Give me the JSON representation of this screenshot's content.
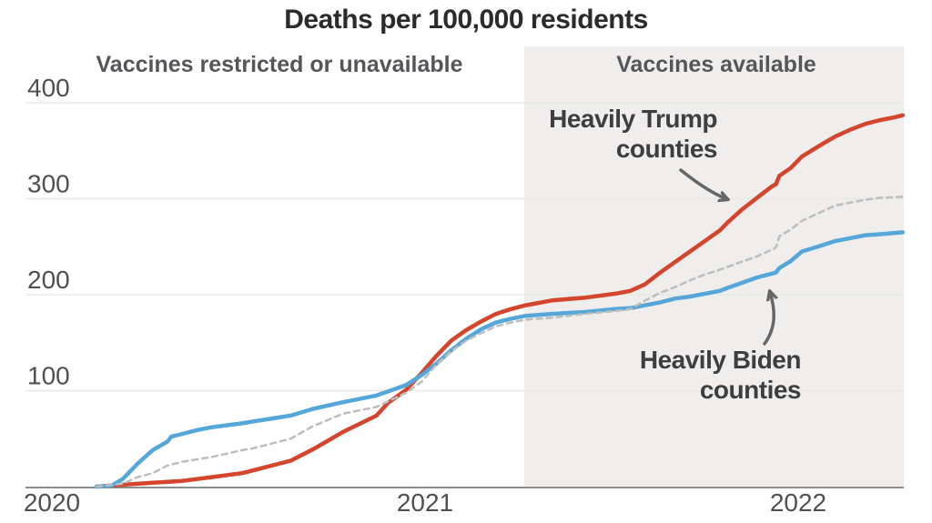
{
  "title": "Deaths per 100,000 residents",
  "regions": {
    "left_label": "Vaccines restricted or unavailable",
    "right_label": "Vaccines available"
  },
  "annotations": {
    "trump": {
      "line1": "Heavily Trump",
      "line2": "counties"
    },
    "biden": {
      "line1": "Heavily Biden",
      "line2": "counties"
    }
  },
  "colors": {
    "trump_line": "#d5452d",
    "biden_line": "#56a7d9",
    "dashed_line": "#bdbdbd",
    "vaccine_band": "#efeeec",
    "grid": "#e9e8e5",
    "axis": "#8e8e8e",
    "tick_text": "#4f5052",
    "arrow": "#676767",
    "title_text": "#2b2b2e"
  },
  "chart_data": {
    "type": "line",
    "title": "Deaths per 100,000 residents",
    "xlabel": "",
    "ylabel": "Deaths per 100,000 residents",
    "x_axis": {
      "ticks": [
        {
          "label": "2020",
          "t": 2020
        },
        {
          "label": "2021",
          "t": 2021
        },
        {
          "label": "2022",
          "t": 2022
        }
      ],
      "range": [
        2019.93,
        2022.29
      ]
    },
    "y_axis": {
      "ticks": [
        100,
        200,
        300,
        400
      ],
      "range": [
        0,
        455
      ],
      "grid": true
    },
    "vaccine_divider_t": 2021.265,
    "region_split_meaning": {
      "left": "Vaccines restricted or unavailable",
      "right": "Vaccines available"
    },
    "legend_position": "inline-annotations",
    "series": [
      {
        "name": "Heavily Trump counties",
        "style": "solid",
        "color": "#d5452d",
        "points": [
          [
            2020.12,
            0
          ],
          [
            2020.19,
            2
          ],
          [
            2020.27,
            4
          ],
          [
            2020.35,
            6
          ],
          [
            2020.43,
            10
          ],
          [
            2020.51,
            14
          ],
          [
            2020.54,
            17
          ],
          [
            2020.64,
            27
          ],
          [
            2020.7,
            39
          ],
          [
            2020.78,
            57
          ],
          [
            2020.87,
            74
          ],
          [
            2020.9,
            87
          ],
          [
            2020.95,
            101
          ],
          [
            2020.99,
            118
          ],
          [
            2021.03,
            136
          ],
          [
            2021.07,
            152
          ],
          [
            2021.11,
            163
          ],
          [
            2021.15,
            172
          ],
          [
            2021.19,
            180
          ],
          [
            2021.23,
            185
          ],
          [
            2021.27,
            189
          ],
          [
            2021.34,
            194
          ],
          [
            2021.43,
            197
          ],
          [
            2021.51,
            201
          ],
          [
            2021.55,
            204
          ],
          [
            2021.59,
            211
          ],
          [
            2021.63,
            223
          ],
          [
            2021.67,
            234
          ],
          [
            2021.71,
            245
          ],
          [
            2021.75,
            256
          ],
          [
            2021.79,
            267
          ],
          [
            2021.81,
            275
          ],
          [
            2021.85,
            289
          ],
          [
            2021.89,
            301
          ],
          [
            2021.93,
            313
          ],
          [
            2021.94,
            315
          ],
          [
            2021.95,
            324
          ],
          [
            2021.98,
            332
          ],
          [
            2022.01,
            344
          ],
          [
            2022.06,
            356
          ],
          [
            2022.1,
            365
          ],
          [
            2022.14,
            372
          ],
          [
            2022.18,
            378
          ],
          [
            2022.22,
            382
          ],
          [
            2022.26,
            385
          ],
          [
            2022.28,
            387
          ]
        ]
      },
      {
        "name": "Heavily Biden counties",
        "style": "solid",
        "color": "#56a7d9",
        "points": [
          [
            2020.12,
            0
          ],
          [
            2020.16,
            1
          ],
          [
            2020.19,
            8
          ],
          [
            2020.23,
            24
          ],
          [
            2020.27,
            38
          ],
          [
            2020.31,
            47
          ],
          [
            2020.32,
            52
          ],
          [
            2020.35,
            55
          ],
          [
            2020.39,
            59
          ],
          [
            2020.43,
            62
          ],
          [
            2020.47,
            64
          ],
          [
            2020.51,
            66
          ],
          [
            2020.54,
            68
          ],
          [
            2020.59,
            71
          ],
          [
            2020.64,
            74
          ],
          [
            2020.7,
            81
          ],
          [
            2020.78,
            88
          ],
          [
            2020.87,
            95
          ],
          [
            2020.95,
            106
          ],
          [
            2020.99,
            116
          ],
          [
            2021.03,
            128
          ],
          [
            2021.07,
            142
          ],
          [
            2021.11,
            154
          ],
          [
            2021.15,
            164
          ],
          [
            2021.19,
            171
          ],
          [
            2021.23,
            175
          ],
          [
            2021.27,
            178
          ],
          [
            2021.34,
            180
          ],
          [
            2021.43,
            182
          ],
          [
            2021.51,
            185
          ],
          [
            2021.55,
            186
          ],
          [
            2021.59,
            189
          ],
          [
            2021.63,
            192
          ],
          [
            2021.67,
            196
          ],
          [
            2021.71,
            198
          ],
          [
            2021.75,
            201
          ],
          [
            2021.79,
            204
          ],
          [
            2021.81,
            207
          ],
          [
            2021.89,
            218
          ],
          [
            2021.93,
            222
          ],
          [
            2021.94,
            223
          ],
          [
            2021.95,
            228
          ],
          [
            2021.98,
            235
          ],
          [
            2022.01,
            245
          ],
          [
            2022.06,
            251
          ],
          [
            2022.1,
            256
          ],
          [
            2022.14,
            259
          ],
          [
            2022.18,
            262
          ],
          [
            2022.22,
            263
          ],
          [
            2022.28,
            265
          ]
        ]
      },
      {
        "name": "(unlabeled dashed gray line)",
        "style": "dashed",
        "color": "#bdbdbd",
        "points": [
          [
            2020.12,
            0
          ],
          [
            2020.19,
            3
          ],
          [
            2020.23,
            10
          ],
          [
            2020.27,
            14
          ],
          [
            2020.31,
            22
          ],
          [
            2020.35,
            26
          ],
          [
            2020.43,
            31
          ],
          [
            2020.51,
            38
          ],
          [
            2020.54,
            40
          ],
          [
            2020.64,
            50
          ],
          [
            2020.7,
            63
          ],
          [
            2020.78,
            76
          ],
          [
            2020.87,
            83
          ],
          [
            2020.95,
            98
          ],
          [
            2020.99,
            109
          ],
          [
            2021.03,
            127
          ],
          [
            2021.07,
            141
          ],
          [
            2021.11,
            152
          ],
          [
            2021.15,
            160
          ],
          [
            2021.19,
            167
          ],
          [
            2021.23,
            171
          ],
          [
            2021.27,
            174
          ],
          [
            2021.34,
            176
          ],
          [
            2021.43,
            180
          ],
          [
            2021.51,
            183
          ],
          [
            2021.55,
            185
          ],
          [
            2021.59,
            194
          ],
          [
            2021.63,
            202
          ],
          [
            2021.67,
            208
          ],
          [
            2021.71,
            215
          ],
          [
            2021.75,
            221
          ],
          [
            2021.79,
            226
          ],
          [
            2021.81,
            229
          ],
          [
            2021.89,
            240
          ],
          [
            2021.93,
            247
          ],
          [
            2021.94,
            249
          ],
          [
            2021.95,
            261
          ],
          [
            2021.98,
            268
          ],
          [
            2022.01,
            277
          ],
          [
            2022.06,
            286
          ],
          [
            2022.1,
            293
          ],
          [
            2022.14,
            296
          ],
          [
            2022.18,
            299
          ],
          [
            2022.22,
            301
          ],
          [
            2022.28,
            302
          ]
        ]
      }
    ]
  }
}
